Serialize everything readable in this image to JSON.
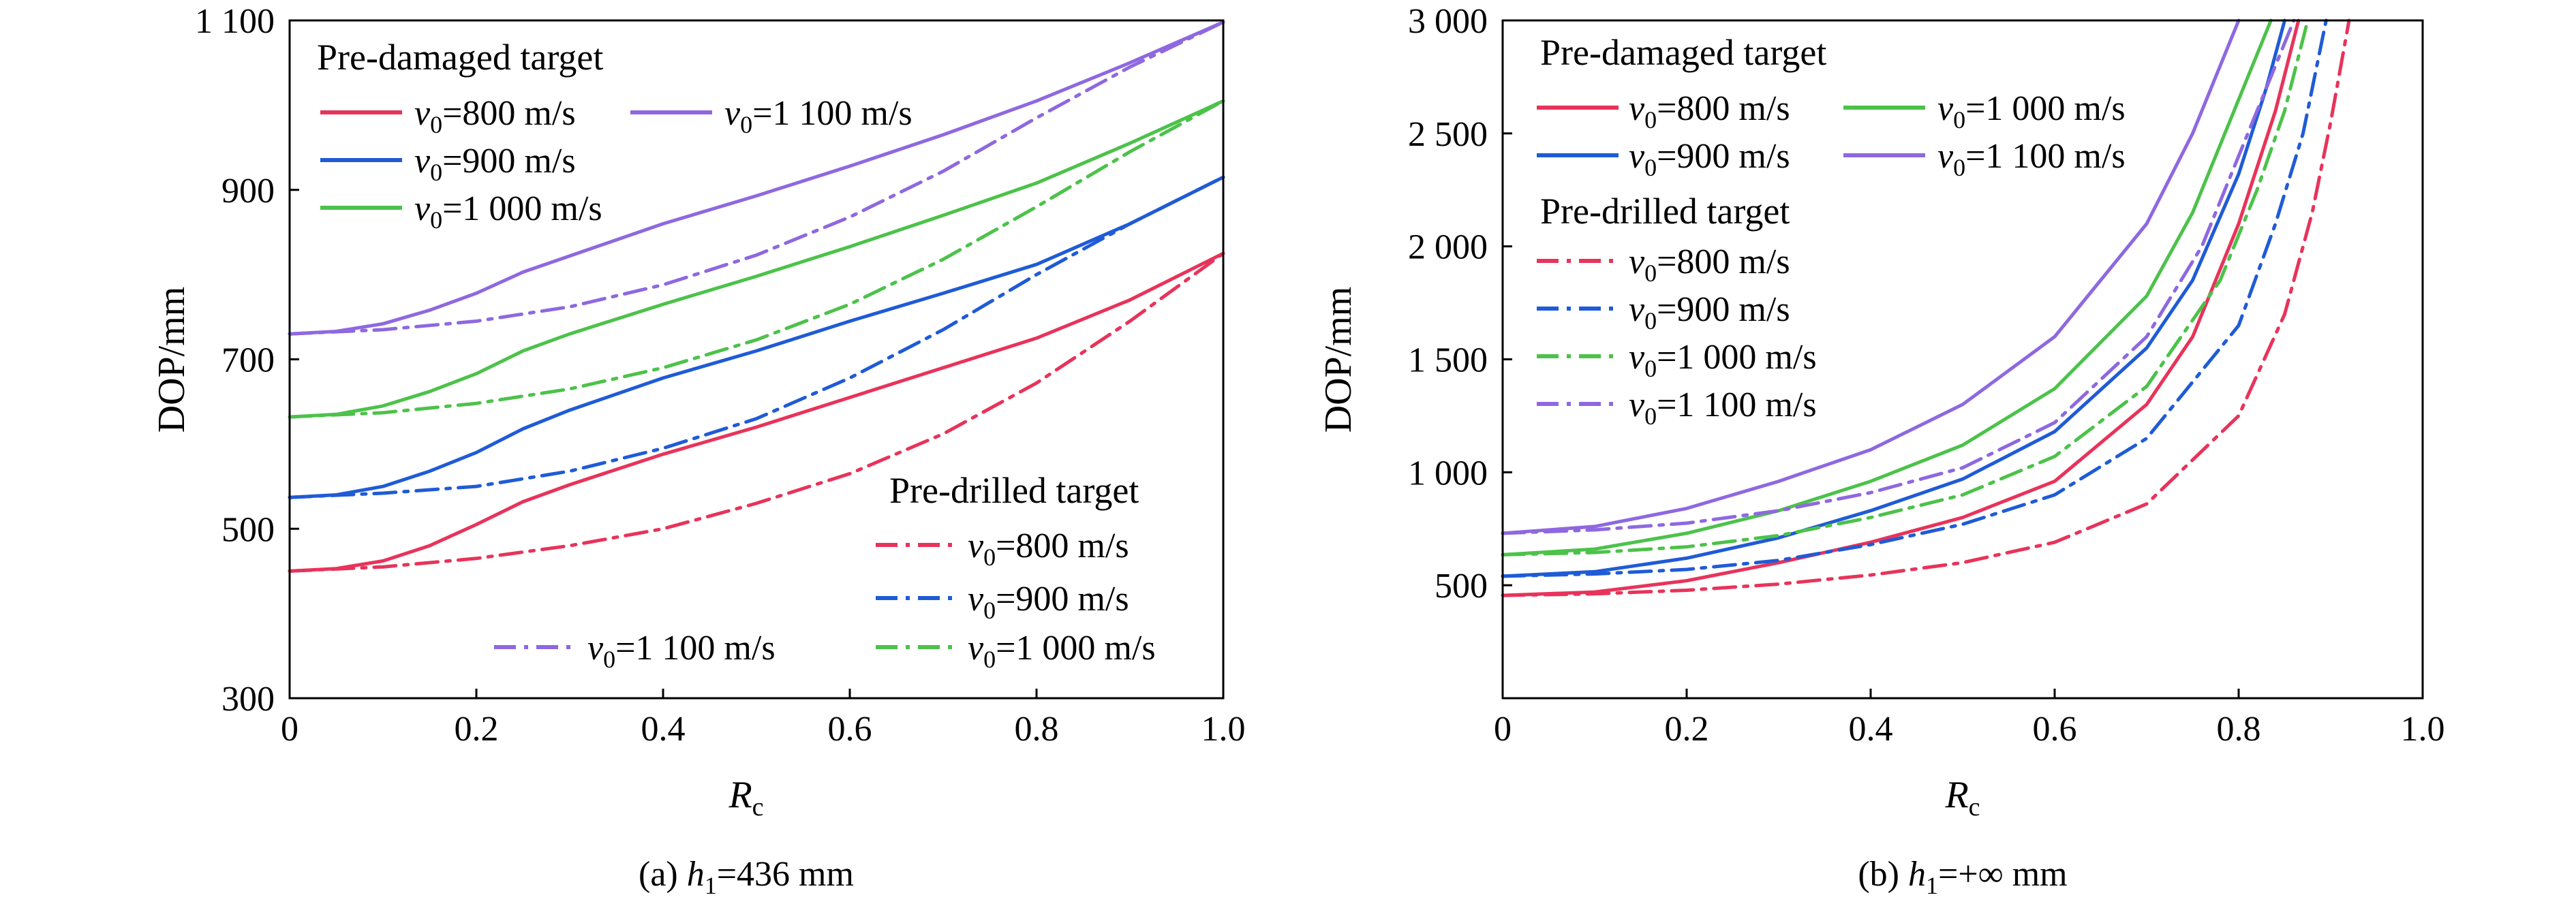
{
  "chart_data": [
    {
      "type": "line",
      "caption": {
        "prefix": "(a) ",
        "var": "h",
        "sub": "1",
        "rest": "=436 mm"
      },
      "xlabel": {
        "main": "R",
        "sub": "c"
      },
      "ylabel": "DOP/mm",
      "xlim": [
        0,
        1.0
      ],
      "ylim": [
        300,
        1100
      ],
      "xticks": [
        0,
        0.2,
        0.4,
        0.6,
        0.8,
        1.0
      ],
      "xtick_labels": [
        "0",
        "0.2",
        "0.4",
        "0.6",
        "0.8",
        "1.0"
      ],
      "yticks": [
        300,
        500,
        700,
        900,
        1100
      ],
      "ytick_labels": [
        "300",
        "500",
        "700",
        "900",
        "1 100"
      ],
      "legend_groups": [
        {
          "title": "Pre-damaged target",
          "style": "solid"
        },
        {
          "title": "Pre-drilled target",
          "style": "dashdot"
        }
      ],
      "series": [
        {
          "name": "v0=800 m/s",
          "group": "Pre-damaged target",
          "style": "solid",
          "color": "#e8335a",
          "x": [
            0,
            0.05,
            0.1,
            0.15,
            0.2,
            0.25,
            0.3,
            0.4,
            0.5,
            0.6,
            0.7,
            0.8,
            0.9,
            1.0
          ],
          "y": [
            450,
            453,
            462,
            480,
            505,
            532,
            552,
            588,
            620,
            655,
            690,
            725,
            770,
            825
          ]
        },
        {
          "name": "v0=900 m/s",
          "group": "Pre-damaged target",
          "style": "solid",
          "color": "#1f5bd6",
          "x": [
            0,
            0.05,
            0.1,
            0.15,
            0.2,
            0.25,
            0.3,
            0.4,
            0.5,
            0.6,
            0.7,
            0.8,
            0.9,
            1.0
          ],
          "y": [
            537,
            540,
            550,
            568,
            590,
            618,
            640,
            678,
            710,
            745,
            778,
            812,
            860,
            915
          ]
        },
        {
          "name": "v0=1 000 m/s",
          "group": "Pre-damaged target",
          "style": "solid",
          "color": "#4cc24a",
          "x": [
            0,
            0.05,
            0.1,
            0.15,
            0.2,
            0.25,
            0.3,
            0.4,
            0.5,
            0.6,
            0.7,
            0.8,
            0.9,
            1.0
          ],
          "y": [
            632,
            635,
            645,
            662,
            683,
            710,
            730,
            765,
            798,
            833,
            870,
            908,
            955,
            1005
          ]
        },
        {
          "name": "v0=1 100 m/s",
          "group": "Pre-damaged target",
          "style": "solid",
          "color": "#8e68e0",
          "x": [
            0,
            0.05,
            0.1,
            0.15,
            0.2,
            0.25,
            0.3,
            0.4,
            0.5,
            0.6,
            0.7,
            0.8,
            0.9,
            1.0
          ],
          "y": [
            730,
            733,
            742,
            758,
            778,
            803,
            822,
            860,
            893,
            928,
            965,
            1005,
            1050,
            1098
          ]
        },
        {
          "name": "v0=800 m/s",
          "group": "Pre-drilled target",
          "style": "dashdot",
          "color": "#e8335a",
          "x": [
            0,
            0.1,
            0.2,
            0.3,
            0.4,
            0.5,
            0.6,
            0.7,
            0.8,
            0.9,
            1.0
          ],
          "y": [
            450,
            455,
            465,
            480,
            500,
            530,
            565,
            612,
            672,
            745,
            825
          ]
        },
        {
          "name": "v0=900 m/s",
          "group": "Pre-drilled target",
          "style": "dashdot",
          "color": "#1f5bd6",
          "x": [
            0,
            0.1,
            0.2,
            0.3,
            0.4,
            0.5,
            0.6,
            0.7,
            0.8,
            0.9,
            1.0
          ],
          "y": [
            537,
            542,
            550,
            568,
            595,
            630,
            678,
            735,
            800,
            860,
            915
          ]
        },
        {
          "name": "v0=1 000 m/s",
          "group": "Pre-drilled target",
          "style": "dashdot",
          "color": "#4cc24a",
          "x": [
            0,
            0.1,
            0.2,
            0.3,
            0.4,
            0.5,
            0.6,
            0.7,
            0.8,
            0.9,
            1.0
          ],
          "y": [
            632,
            637,
            648,
            665,
            690,
            723,
            765,
            818,
            880,
            945,
            1005
          ]
        },
        {
          "name": "v0=1 100 m/s",
          "group": "Pre-drilled target",
          "style": "dashdot",
          "color": "#8e68e0",
          "x": [
            0,
            0.1,
            0.2,
            0.3,
            0.4,
            0.5,
            0.6,
            0.7,
            0.8,
            0.9,
            1.0
          ],
          "y": [
            730,
            735,
            745,
            762,
            788,
            823,
            868,
            922,
            985,
            1045,
            1098
          ]
        }
      ]
    },
    {
      "type": "line",
      "caption": {
        "prefix": "(b) ",
        "var": "h",
        "sub": "1",
        "rest": "=+∞ mm"
      },
      "xlabel": {
        "main": "R",
        "sub": "c"
      },
      "ylabel": "DOP/mm",
      "xlim": [
        0,
        1.0
      ],
      "ylim": [
        0,
        3000
      ],
      "xticks": [
        0,
        0.2,
        0.4,
        0.6,
        0.8,
        1.0
      ],
      "xtick_labels": [
        "0",
        "0.2",
        "0.4",
        "0.6",
        "0.8",
        "1.0"
      ],
      "yticks": [
        500,
        1000,
        1500,
        2000,
        2500,
        3000
      ],
      "ytick_labels": [
        "500",
        "1 000",
        "1 500",
        "2 000",
        "2 500",
        "3 000"
      ],
      "legend_groups": [
        {
          "title": "Pre-damaged target",
          "style": "solid"
        },
        {
          "title": "Pre-drilled target",
          "style": "dashdot"
        }
      ],
      "series": [
        {
          "name": "v0=800 m/s",
          "group": "Pre-damaged target",
          "style": "solid",
          "color": "#e8335a",
          "x": [
            0,
            0.1,
            0.2,
            0.3,
            0.4,
            0.5,
            0.6,
            0.7,
            0.75,
            0.8,
            0.84,
            0.865
          ],
          "y": [
            455,
            470,
            520,
            600,
            690,
            800,
            960,
            1300,
            1600,
            2100,
            2600,
            3000
          ]
        },
        {
          "name": "v0=900 m/s",
          "group": "Pre-damaged target",
          "style": "solid",
          "color": "#1f5bd6",
          "x": [
            0,
            0.1,
            0.2,
            0.3,
            0.4,
            0.5,
            0.6,
            0.7,
            0.75,
            0.8,
            0.83,
            0.85
          ],
          "y": [
            540,
            560,
            620,
            710,
            830,
            970,
            1180,
            1550,
            1850,
            2320,
            2700,
            3000
          ]
        },
        {
          "name": "v0=1 000 m/s",
          "group": "Pre-damaged target",
          "style": "solid",
          "color": "#4cc24a",
          "x": [
            0,
            0.1,
            0.2,
            0.3,
            0.4,
            0.5,
            0.6,
            0.7,
            0.75,
            0.79,
            0.82,
            0.835
          ],
          "y": [
            635,
            660,
            730,
            830,
            960,
            1120,
            1370,
            1780,
            2150,
            2550,
            2850,
            3000
          ]
        },
        {
          "name": "v0=1 100 m/s",
          "group": "Pre-damaged target",
          "style": "solid",
          "color": "#8e68e0",
          "x": [
            0,
            0.1,
            0.2,
            0.3,
            0.4,
            0.5,
            0.6,
            0.7,
            0.75,
            0.78,
            0.8
          ],
          "y": [
            730,
            760,
            840,
            960,
            1100,
            1300,
            1600,
            2100,
            2500,
            2800,
            3000
          ]
        },
        {
          "name": "v0=800 m/s",
          "group": "Pre-drilled target",
          "style": "dashdot",
          "color": "#e8335a",
          "x": [
            0,
            0.1,
            0.2,
            0.3,
            0.4,
            0.5,
            0.6,
            0.7,
            0.8,
            0.85,
            0.88,
            0.9,
            0.92
          ],
          "y": [
            455,
            462,
            478,
            505,
            545,
            600,
            690,
            860,
            1250,
            1700,
            2150,
            2550,
            3000
          ]
        },
        {
          "name": "v0=900 m/s",
          "group": "Pre-drilled target",
          "style": "dashdot",
          "color": "#1f5bd6",
          "x": [
            0,
            0.1,
            0.2,
            0.3,
            0.4,
            0.5,
            0.6,
            0.7,
            0.8,
            0.84,
            0.87,
            0.895
          ],
          "y": [
            540,
            550,
            570,
            610,
            680,
            770,
            900,
            1150,
            1650,
            2100,
            2500,
            3000
          ]
        },
        {
          "name": "v0=1 000 m/s",
          "group": "Pre-drilled target",
          "style": "dashdot",
          "color": "#4cc24a",
          "x": [
            0,
            0.1,
            0.2,
            0.3,
            0.4,
            0.5,
            0.6,
            0.7,
            0.78,
            0.82,
            0.85,
            0.875
          ],
          "y": [
            635,
            645,
            670,
            720,
            800,
            900,
            1070,
            1380,
            1850,
            2250,
            2600,
            3000
          ]
        },
        {
          "name": "v0=1 100 m/s",
          "group": "Pre-drilled target",
          "style": "dashdot",
          "color": "#8e68e0",
          "x": [
            0,
            0.1,
            0.2,
            0.3,
            0.4,
            0.5,
            0.6,
            0.7,
            0.76,
            0.8,
            0.83,
            0.86
          ],
          "y": [
            730,
            745,
            775,
            830,
            910,
            1020,
            1220,
            1600,
            2000,
            2400,
            2700,
            3000
          ]
        }
      ]
    }
  ]
}
